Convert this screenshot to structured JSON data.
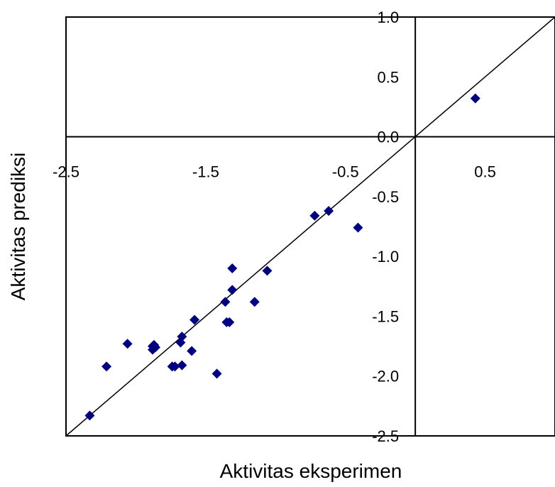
{
  "chart_data": {
    "type": "scatter",
    "title": "",
    "xlabel": "Aktivitas eksperimen",
    "ylabel": "Aktivitas prediksi",
    "xlim": [
      -2.5,
      1.0
    ],
    "ylim": [
      -2.5,
      1.0
    ],
    "xticks": [
      -2.5,
      -1.5,
      -0.5,
      0.5
    ],
    "xtick_labels": [
      "-2.5",
      "-1.5",
      "-0.5",
      "0.5"
    ],
    "yticks": [
      1.0,
      0.5,
      0.0,
      -0.5,
      -1.0,
      -1.5,
      -2.0,
      -2.5
    ],
    "ytick_labels": [
      "1.0",
      "0.5",
      "0.0",
      "-0.5",
      "-1.0",
      "-1.5",
      "-2.0",
      "-2.5"
    ],
    "grid": false,
    "legend": "none",
    "marker": "diamond",
    "colors": {
      "marker": "#00007F",
      "axis": "#000000",
      "reference_line": "#000000"
    },
    "reference_line": {
      "type": "y=x",
      "from": [
        -2.5,
        -2.5
      ],
      "to": [
        1.0,
        1.0
      ]
    },
    "series": [
      {
        "values": [
          {
            "x": 0.43,
            "y": 0.32
          },
          {
            "x": -0.72,
            "y": -0.66
          },
          {
            "x": -0.62,
            "y": -0.62
          },
          {
            "x": -0.41,
            "y": -0.76
          },
          {
            "x": -1.31,
            "y": -1.1
          },
          {
            "x": -1.06,
            "y": -1.12
          },
          {
            "x": -1.31,
            "y": -1.28
          },
          {
            "x": -1.36,
            "y": -1.38
          },
          {
            "x": -1.15,
            "y": -1.38
          },
          {
            "x": -1.58,
            "y": -1.53
          },
          {
            "x": -1.35,
            "y": -1.55
          },
          {
            "x": -1.33,
            "y": -1.55
          },
          {
            "x": -1.67,
            "y": -1.67
          },
          {
            "x": -1.68,
            "y": -1.72
          },
          {
            "x": -2.06,
            "y": -1.73
          },
          {
            "x": -1.87,
            "y": -1.74
          },
          {
            "x": -1.88,
            "y": -1.75
          },
          {
            "x": -1.86,
            "y": -1.76
          },
          {
            "x": -1.88,
            "y": -1.78
          },
          {
            "x": -1.6,
            "y": -1.79
          },
          {
            "x": -2.21,
            "y": -1.92
          },
          {
            "x": -1.74,
            "y": -1.92
          },
          {
            "x": -1.72,
            "y": -1.92
          },
          {
            "x": -1.67,
            "y": -1.91
          },
          {
            "x": -1.42,
            "y": -1.98
          },
          {
            "x": -2.33,
            "y": -2.33
          }
        ]
      }
    ]
  }
}
